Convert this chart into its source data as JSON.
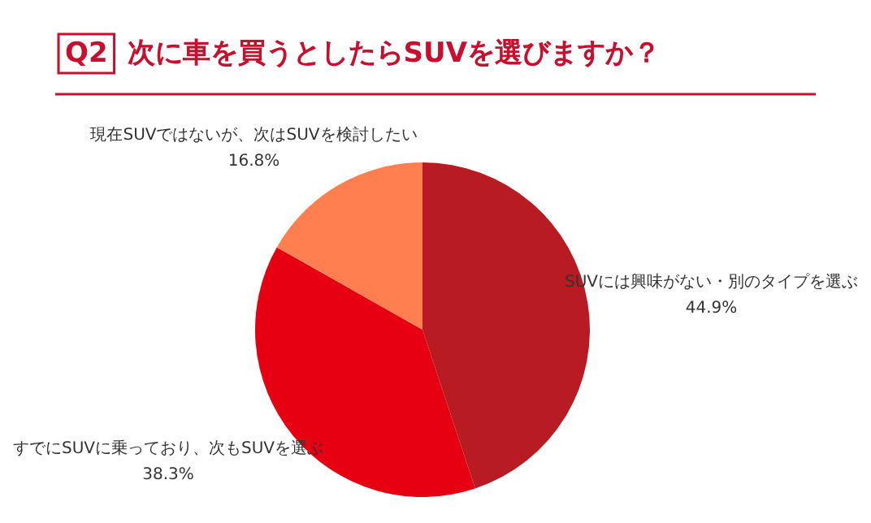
{
  "chart_data": {
    "type": "pie",
    "title": "Q2 次に車を買うとしたらSUVを選びますか？",
    "categories": [
      "SUVには興味がない・別のタイプを選ぶ",
      "すでにSUVに乗っており、次もSUVを選ぶ",
      "現在SUVではないが、次はSUVを検討したい"
    ],
    "values": [
      44.9,
      38.3,
      16.8
    ],
    "colors": [
      "#b81c22",
      "#e60012",
      "#ff7f50"
    ],
    "value_labels": [
      "44.9%",
      "38.3%",
      "16.8%"
    ]
  }
}
